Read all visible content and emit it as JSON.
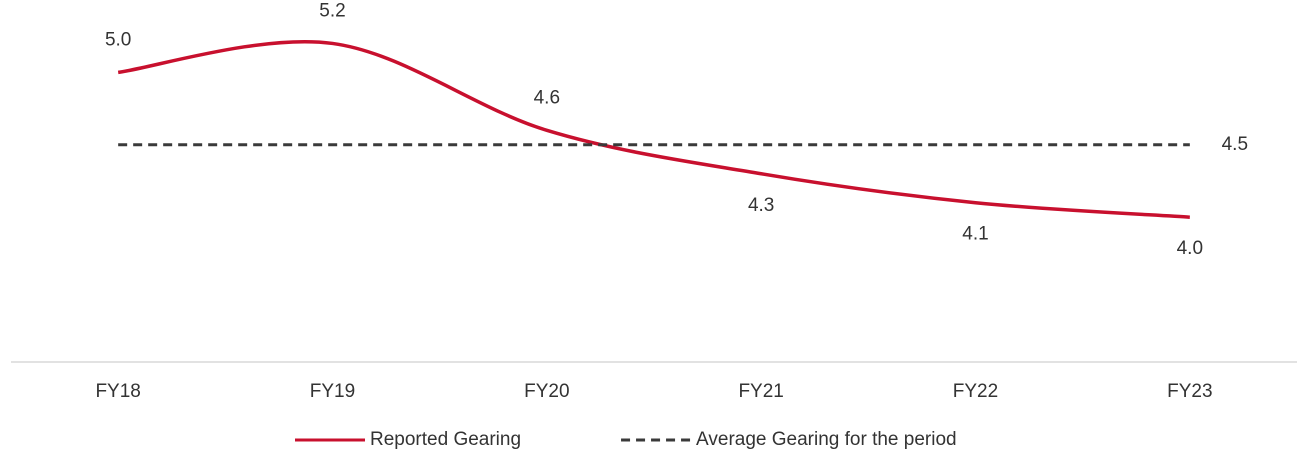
{
  "chart_data": {
    "type": "line",
    "categories": [
      "FY18",
      "FY19",
      "FY20",
      "FY21",
      "FY22",
      "FY23"
    ],
    "series": [
      {
        "name": "Reported Gearing",
        "color": "#c8102e",
        "style": "solid",
        "smooth": true,
        "values": [
          5.0,
          5.2,
          4.6,
          4.3,
          4.1,
          4.0
        ]
      },
      {
        "name": "Average Gearing for the period",
        "color": "#3a3a3a",
        "style": "dashed",
        "smooth": false,
        "values": [
          4.5,
          4.5,
          4.5,
          4.5,
          4.5,
          4.5
        ]
      }
    ],
    "ylim": [
      3,
      5.5
    ]
  }
}
